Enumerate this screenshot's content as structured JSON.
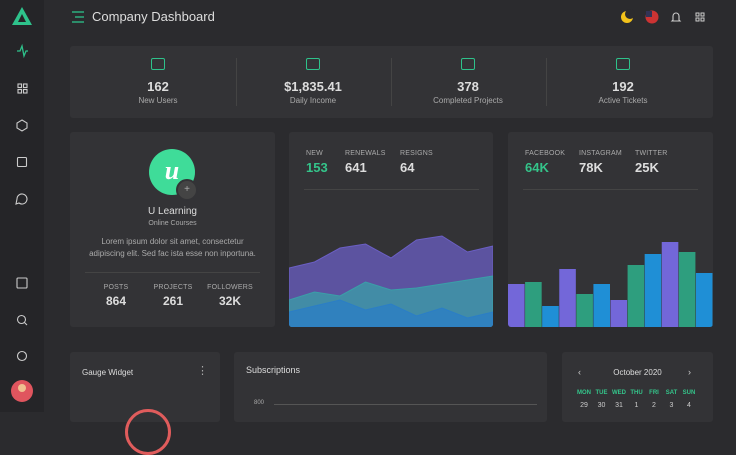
{
  "header": {
    "title": "Company Dashboard"
  },
  "stats": [
    {
      "value": "162",
      "label": "New Users"
    },
    {
      "value": "$1,835.41",
      "label": "Daily Income"
    },
    {
      "value": "378",
      "label": "Completed Projects"
    },
    {
      "value": "192",
      "label": "Active Tickets"
    }
  ],
  "profile": {
    "name": "U Learning",
    "subtitle": "Online Courses",
    "description": [
      "Lorem ipsum dolor sit amet, consectetur",
      "adipiscing elit. Sed fac ista esse non inportuna."
    ],
    "stats": [
      {
        "label": "POSTS",
        "value": "864"
      },
      {
        "label": "PROJECTS",
        "value": "261"
      },
      {
        "label": "FOLLOWERS",
        "value": "32K"
      }
    ]
  },
  "renewals": {
    "stats": [
      {
        "label": "NEW",
        "value": "153"
      },
      {
        "label": "RENEWALS",
        "value": "641"
      },
      {
        "label": "RESIGNS",
        "value": "64"
      }
    ],
    "chart": {
      "type": "area",
      "ylim": [
        0,
        100
      ],
      "series": [
        {
          "color": "#6b5fc4",
          "values": [
            59,
            65,
            79,
            83,
            69,
            87,
            91,
            75,
            81
          ]
        },
        {
          "color": "#3a9fa8",
          "values": [
            27,
            35,
            31,
            45,
            37,
            39,
            43,
            47,
            51
          ]
        },
        {
          "color": "#2b7ec6",
          "values": [
            15,
            21,
            27,
            17,
            23,
            11,
            19,
            9,
            15
          ]
        }
      ]
    }
  },
  "social": {
    "stats": [
      {
        "label": "FACEBOOK",
        "value": "64K"
      },
      {
        "label": "INSTAGRAM",
        "value": "78K"
      },
      {
        "label": "TWITTER",
        "value": "25K"
      }
    ],
    "chart": {
      "type": "bar",
      "ylim": [
        0,
        100
      ],
      "values": [
        43,
        45,
        21,
        58,
        33,
        43,
        27,
        62,
        73,
        85,
        75,
        54
      ],
      "colors": [
        "#7367d9",
        "#2e9e7e",
        "#1f8fd6",
        "#7367d9",
        "#2e9e7e",
        "#1f8fd6",
        "#7367d9",
        "#2e9e7e",
        "#1f8fd6",
        "#7367d9",
        "#2e9e7e",
        "#1f8fd6"
      ]
    }
  },
  "gauge": {
    "title": "Gauge Widget"
  },
  "subscriptions": {
    "title": "Subscriptions",
    "yticks": [
      800
    ]
  },
  "calendar": {
    "month": "October 2020",
    "weekdays": [
      "MON",
      "TUE",
      "WED",
      "THU",
      "FRI",
      "SAT",
      "SUN"
    ],
    "dates": [
      29,
      30,
      31,
      1,
      2,
      3,
      4
    ]
  }
}
